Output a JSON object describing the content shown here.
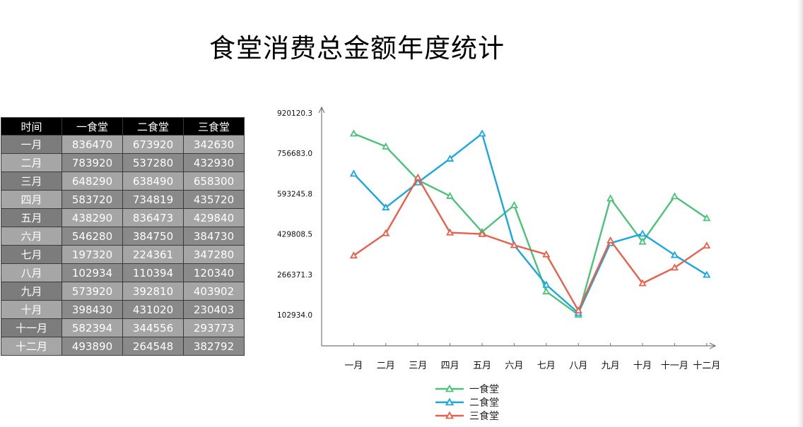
{
  "title": "食堂消费总金额年度统计",
  "table": {
    "headers": [
      "时间",
      "一食堂",
      "二食堂",
      "三食堂"
    ],
    "rows": [
      [
        "一月",
        "836470",
        "673920",
        "342630"
      ],
      [
        "二月",
        "783920",
        "537280",
        "432930"
      ],
      [
        "三月",
        "648290",
        "638490",
        "658300"
      ],
      [
        "四月",
        "583720",
        "734819",
        "435720"
      ],
      [
        "五月",
        "438290",
        "836473",
        "429840"
      ],
      [
        "六月",
        "546280",
        "384750",
        "384730"
      ],
      [
        "七月",
        "197320",
        "224361",
        "347280"
      ],
      [
        "八月",
        "102934",
        "110394",
        "120340"
      ],
      [
        "九月",
        "573920",
        "392810",
        "403902"
      ],
      [
        "十月",
        "398430",
        "431020",
        "230403"
      ],
      [
        "十一月",
        "582394",
        "344556",
        "293773"
      ],
      [
        "十二月",
        "493890",
        "264548",
        "382792"
      ]
    ]
  },
  "chart_data": {
    "type": "line",
    "title": "",
    "xlabel": "",
    "ylabel": "",
    "categories": [
      "一月",
      "二月",
      "三月",
      "四月",
      "五月",
      "六月",
      "七月",
      "八月",
      "九月",
      "十月",
      "十一月",
      "十二月"
    ],
    "y_ticks": [
      "102934.0",
      "266371.3",
      "429808.5",
      "593245.8",
      "756683.0",
      "920120.3"
    ],
    "ylim": [
      102934.0,
      920120.3
    ],
    "marker": "triangle",
    "grid": false,
    "legend_position": "bottom",
    "series": [
      {
        "name": "一食堂",
        "color": "#4bc27a",
        "values": [
          836470,
          783920,
          648290,
          583720,
          438290,
          546280,
          197320,
          102934,
          573920,
          398430,
          582394,
          493890
        ]
      },
      {
        "name": "二食堂",
        "color": "#1aa6e0",
        "values": [
          673920,
          537280,
          638490,
          734819,
          836473,
          384750,
          224361,
          110394,
          392810,
          431020,
          344556,
          264548
        ]
      },
      {
        "name": "三食堂",
        "color": "#e8604c",
        "values": [
          342630,
          432930,
          658300,
          435720,
          429840,
          384730,
          347280,
          120340,
          403902,
          230403,
          293773,
          382792
        ]
      }
    ]
  }
}
